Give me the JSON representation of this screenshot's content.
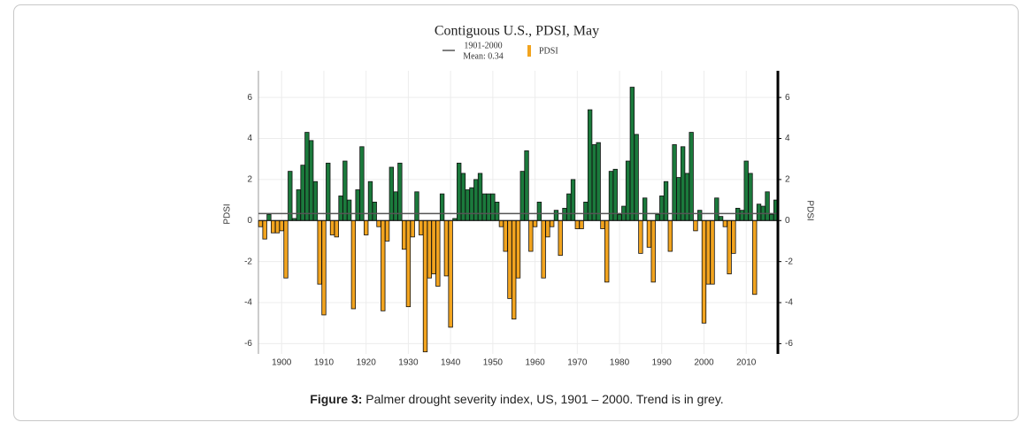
{
  "chart_data": {
    "type": "bar",
    "title": "Contiguous U.S., PDSI, May",
    "ylabel": "PDSI",
    "y2label": "PDSI",
    "caption": {
      "label": "Figure 3:",
      "text": "Palmer drought severity index, US, 1901 – 2000. Trend is in grey."
    },
    "mean_line": {
      "label": [
        "1901-2000",
        "Mean: 0.34"
      ],
      "value": 0.34,
      "color": "#555555"
    },
    "series": [
      {
        "name": "PDSI",
        "positive_color": "#1b7a3c",
        "negative_color": "#f2a41f",
        "x": [
          1895,
          1896,
          1897,
          1898,
          1899,
          1900,
          1901,
          1902,
          1903,
          1904,
          1905,
          1906,
          1907,
          1908,
          1909,
          1910,
          1911,
          1912,
          1913,
          1914,
          1915,
          1916,
          1917,
          1918,
          1919,
          1920,
          1921,
          1922,
          1923,
          1924,
          1925,
          1926,
          1927,
          1928,
          1929,
          1930,
          1931,
          1932,
          1933,
          1934,
          1935,
          1936,
          1937,
          1938,
          1939,
          1940,
          1941,
          1942,
          1943,
          1944,
          1945,
          1946,
          1947,
          1948,
          1949,
          1950,
          1951,
          1952,
          1953,
          1954,
          1955,
          1956,
          1957,
          1958,
          1959,
          1960,
          1961,
          1962,
          1963,
          1964,
          1965,
          1966,
          1967,
          1968,
          1969,
          1970,
          1971,
          1972,
          1973,
          1974,
          1975,
          1976,
          1977,
          1978,
          1979,
          1980,
          1981,
          1982,
          1983,
          1984,
          1985,
          1986,
          1987,
          1988,
          1989,
          1990,
          1991,
          1992,
          1993,
          1994,
          1995,
          1996,
          1997,
          1998,
          1999,
          2000,
          2001,
          2002,
          2003,
          2004,
          2005,
          2006,
          2007,
          2008,
          2009,
          2010,
          2011,
          2012,
          2013,
          2014,
          2015,
          2016,
          2017
        ],
        "values": [
          -0.3,
          -0.9,
          0.3,
          -0.6,
          -0.6,
          -0.5,
          -2.8,
          2.4,
          0.1,
          1.5,
          2.7,
          4.3,
          3.9,
          1.9,
          -3.1,
          -4.6,
          2.8,
          -0.7,
          -0.8,
          1.2,
          2.9,
          1.0,
          -4.3,
          1.5,
          3.6,
          -0.7,
          1.9,
          0.9,
          -0.3,
          -4.4,
          -1.0,
          2.6,
          1.4,
          2.8,
          -1.4,
          -4.2,
          -0.8,
          1.4,
          -0.7,
          -6.4,
          -2.8,
          -2.6,
          -3.2,
          1.3,
          -2.7,
          -5.2,
          0.1,
          2.8,
          2.3,
          1.5,
          1.6,
          2.0,
          2.3,
          1.3,
          1.3,
          1.3,
          0.9,
          -0.3,
          -1.5,
          -3.8,
          -4.8,
          -2.8,
          2.4,
          3.4,
          -1.5,
          -0.3,
          0.9,
          -2.8,
          -0.8,
          -0.3,
          0.5,
          -1.7,
          0.6,
          1.3,
          2.0,
          -0.4,
          -0.4,
          0.9,
          5.4,
          3.7,
          3.8,
          -0.4,
          -3.0,
          2.4,
          2.5,
          0.3,
          0.7,
          2.9,
          6.5,
          4.2,
          -1.6,
          1.1,
          -1.3,
          -3.0,
          0.3,
          1.2,
          1.9,
          -1.5,
          3.7,
          2.1,
          3.6,
          2.3,
          4.3,
          -0.5,
          0.5,
          -5.0,
          -3.1,
          -3.1,
          1.1,
          0.2,
          -0.3,
          -2.6,
          -1.6,
          0.6,
          0.5,
          2.9,
          2.3,
          -3.6,
          0.8,
          0.7,
          1.4,
          0.3,
          1.0
        ]
      }
    ],
    "xlim": [
      1894.5,
      2017.5
    ],
    "xticks": [
      1900,
      1910,
      1920,
      1930,
      1940,
      1950,
      1960,
      1970,
      1980,
      1990,
      2000,
      2010
    ],
    "ylim": [
      -6.5,
      7.3
    ],
    "yticks": [
      -6,
      -4,
      -2,
      0,
      2,
      4,
      6
    ],
    "y2ticks": [
      -6,
      -4,
      -2,
      0,
      2,
      4,
      6
    ],
    "grid": true
  }
}
